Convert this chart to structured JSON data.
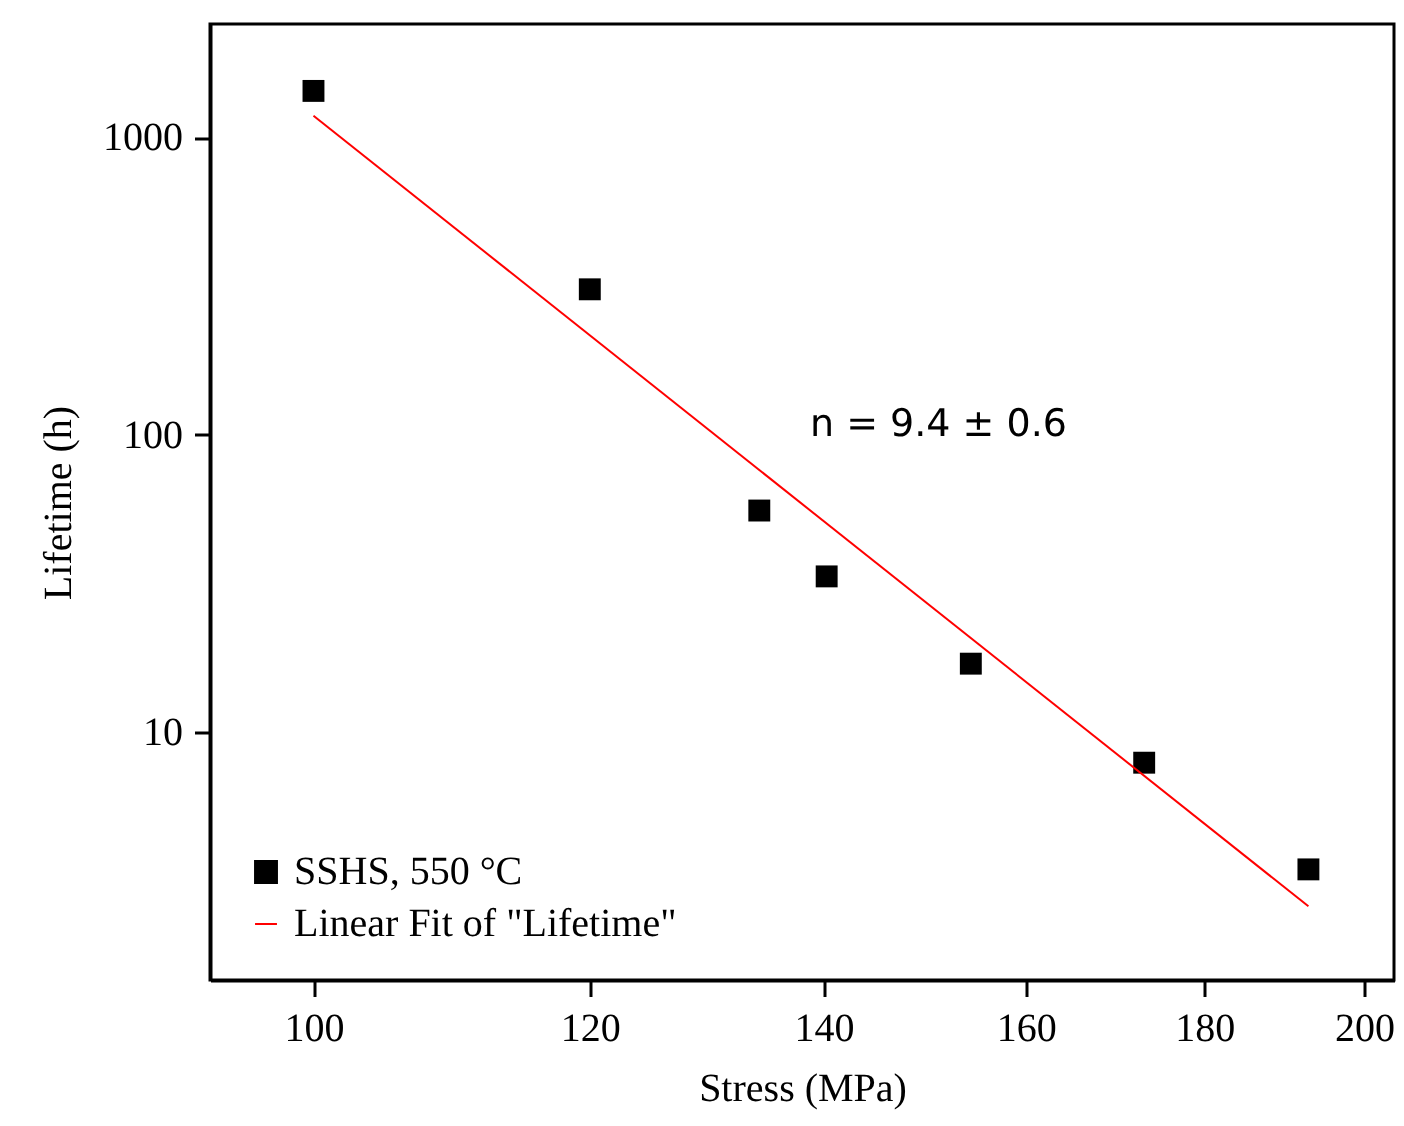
{
  "chart_data": {
    "type": "scatter",
    "xlabel": "Stress (MPa)",
    "ylabel": "Lifetime (h)",
    "log": "xy",
    "xlim": [
      93.4,
      204
    ],
    "ylim": [
      1.47,
      2400
    ],
    "xticks": [
      100,
      120,
      140,
      160,
      180,
      200
    ],
    "yticks": [
      10,
      100,
      1000
    ],
    "grid": false,
    "legend": "bottom left",
    "annotations": [
      "n = 9.4 ± 0.6"
    ],
    "series": [
      {
        "name": "SSHS, 550 °C",
        "marker": "square",
        "color": "#000000",
        "x": [
          100,
          120,
          134.2,
          140.3,
          154.3,
          173,
          192.8
        ],
        "values": [
          1430,
          308,
          55.6,
          33.4,
          17.0,
          7.9,
          3.46
        ]
      },
      {
        "name": "Linear Fit of \"Lifetime\"",
        "type": "line",
        "marker": "none",
        "color": "#ff0000",
        "line_style": "solid",
        "x": [
          100,
          192.8
        ],
        "values": [
          1180,
          2.6
        ]
      }
    ]
  }
}
